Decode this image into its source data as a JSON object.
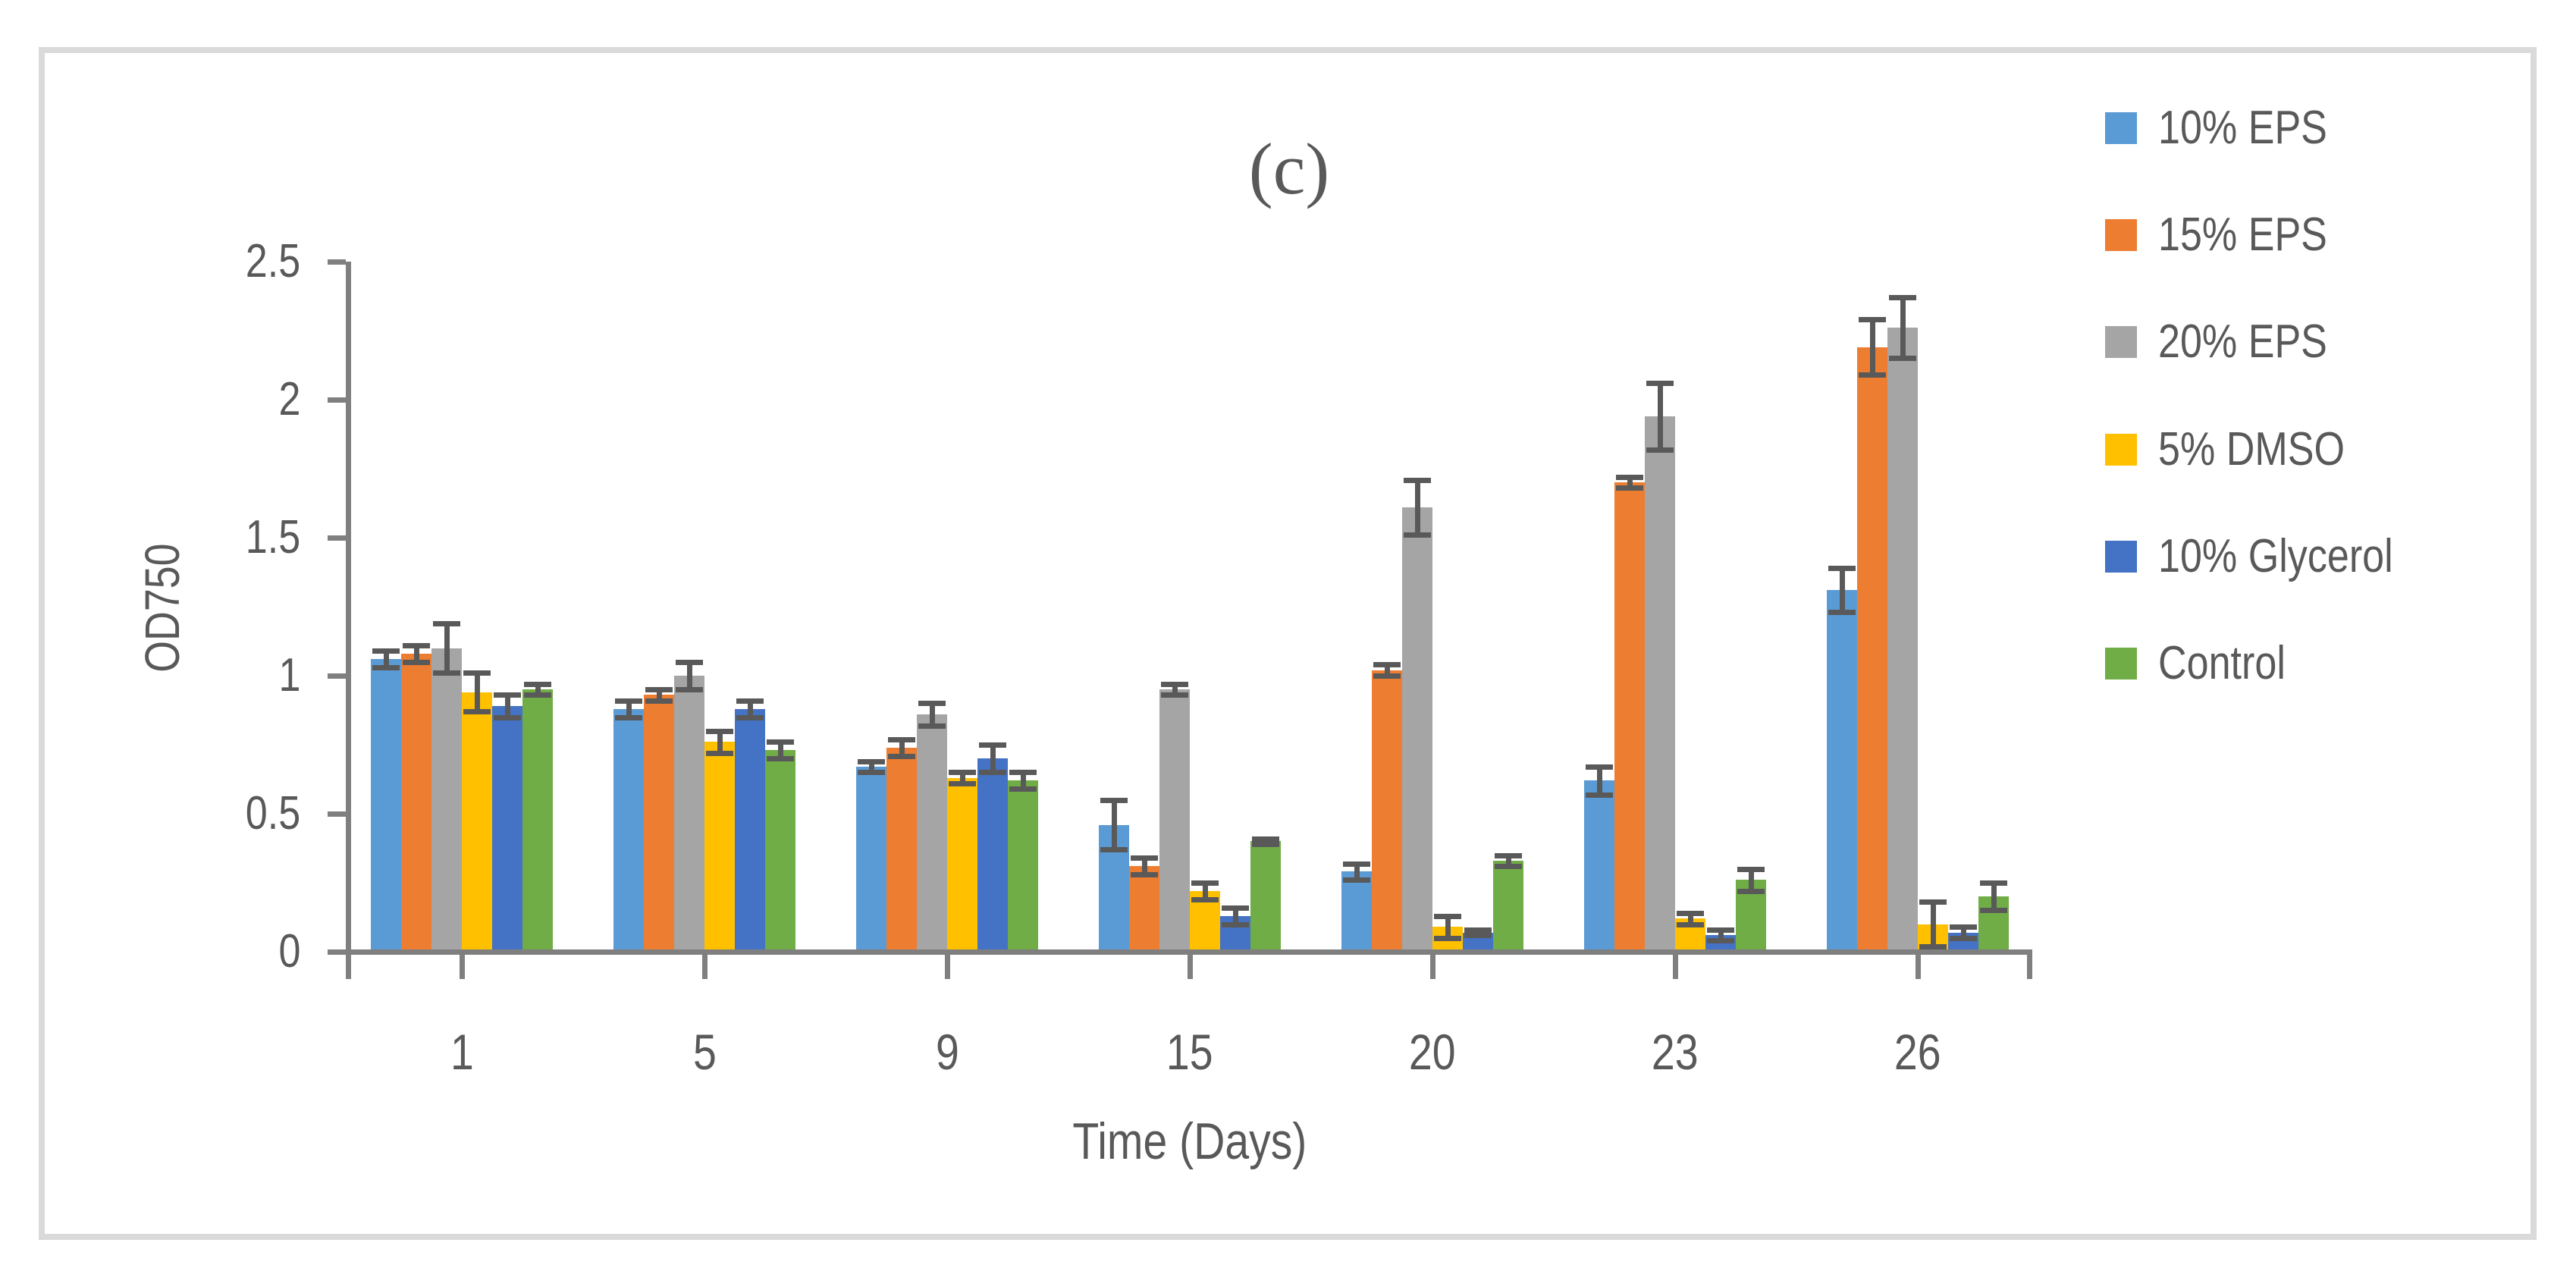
{
  "figure": {
    "panel_label": "(c)"
  },
  "chart_data": {
    "type": "bar",
    "title": "(c)",
    "xlabel": "Time (Days)",
    "ylabel": "OD750",
    "categories": [
      "1",
      "5",
      "9",
      "15",
      "20",
      "23",
      "26"
    ],
    "y_ticks": [
      "0",
      "0.5",
      "1",
      "1.5",
      "2",
      "2.5"
    ],
    "y_tick_values": [
      0,
      0.5,
      1,
      1.5,
      2,
      2.5
    ],
    "ylim": [
      0,
      2.5
    ],
    "grid": false,
    "legend_position": "right",
    "error_bars": true,
    "series": [
      {
        "name": "10% EPS",
        "color": "#5B9BD5",
        "values": [
          1.06,
          0.88,
          0.67,
          0.46,
          0.29,
          0.62,
          1.31
        ],
        "errors": [
          0.03,
          0.03,
          0.02,
          0.09,
          0.03,
          0.05,
          0.08
        ]
      },
      {
        "name": "15% EPS",
        "color": "#ED7D31",
        "values": [
          1.08,
          0.93,
          0.74,
          0.31,
          1.02,
          1.7,
          2.19
        ],
        "errors": [
          0.03,
          0.02,
          0.03,
          0.03,
          0.02,
          0.02,
          0.1
        ]
      },
      {
        "name": "20% EPS",
        "color": "#A5A5A5",
        "values": [
          1.1,
          1.0,
          0.86,
          0.95,
          1.61,
          1.94,
          2.26
        ],
        "errors": [
          0.09,
          0.05,
          0.04,
          0.02,
          0.1,
          0.12,
          0.11
        ]
      },
      {
        "name": "5% DMSO",
        "color": "#FFC000",
        "values": [
          0.94,
          0.76,
          0.63,
          0.22,
          0.09,
          0.12,
          0.1
        ],
        "errors": [
          0.07,
          0.04,
          0.02,
          0.03,
          0.04,
          0.02,
          0.08
        ]
      },
      {
        "name": "10% Glycerol",
        "color": "#4472C4",
        "values": [
          0.89,
          0.88,
          0.7,
          0.13,
          0.07,
          0.06,
          0.07
        ],
        "errors": [
          0.04,
          0.03,
          0.05,
          0.03,
          0.01,
          0.02,
          0.02
        ]
      },
      {
        "name": "Control",
        "color": "#70AD47",
        "values": [
          0.95,
          0.73,
          0.62,
          0.4,
          0.33,
          0.26,
          0.2
        ],
        "errors": [
          0.02,
          0.03,
          0.03,
          0.01,
          0.02,
          0.04,
          0.05
        ]
      }
    ],
    "colors": {
      "axis": "#7F7F7F",
      "error_bar": "#595959",
      "text": "#595959",
      "figure_border": "#DADADA",
      "background": "#FFFFFF"
    }
  }
}
